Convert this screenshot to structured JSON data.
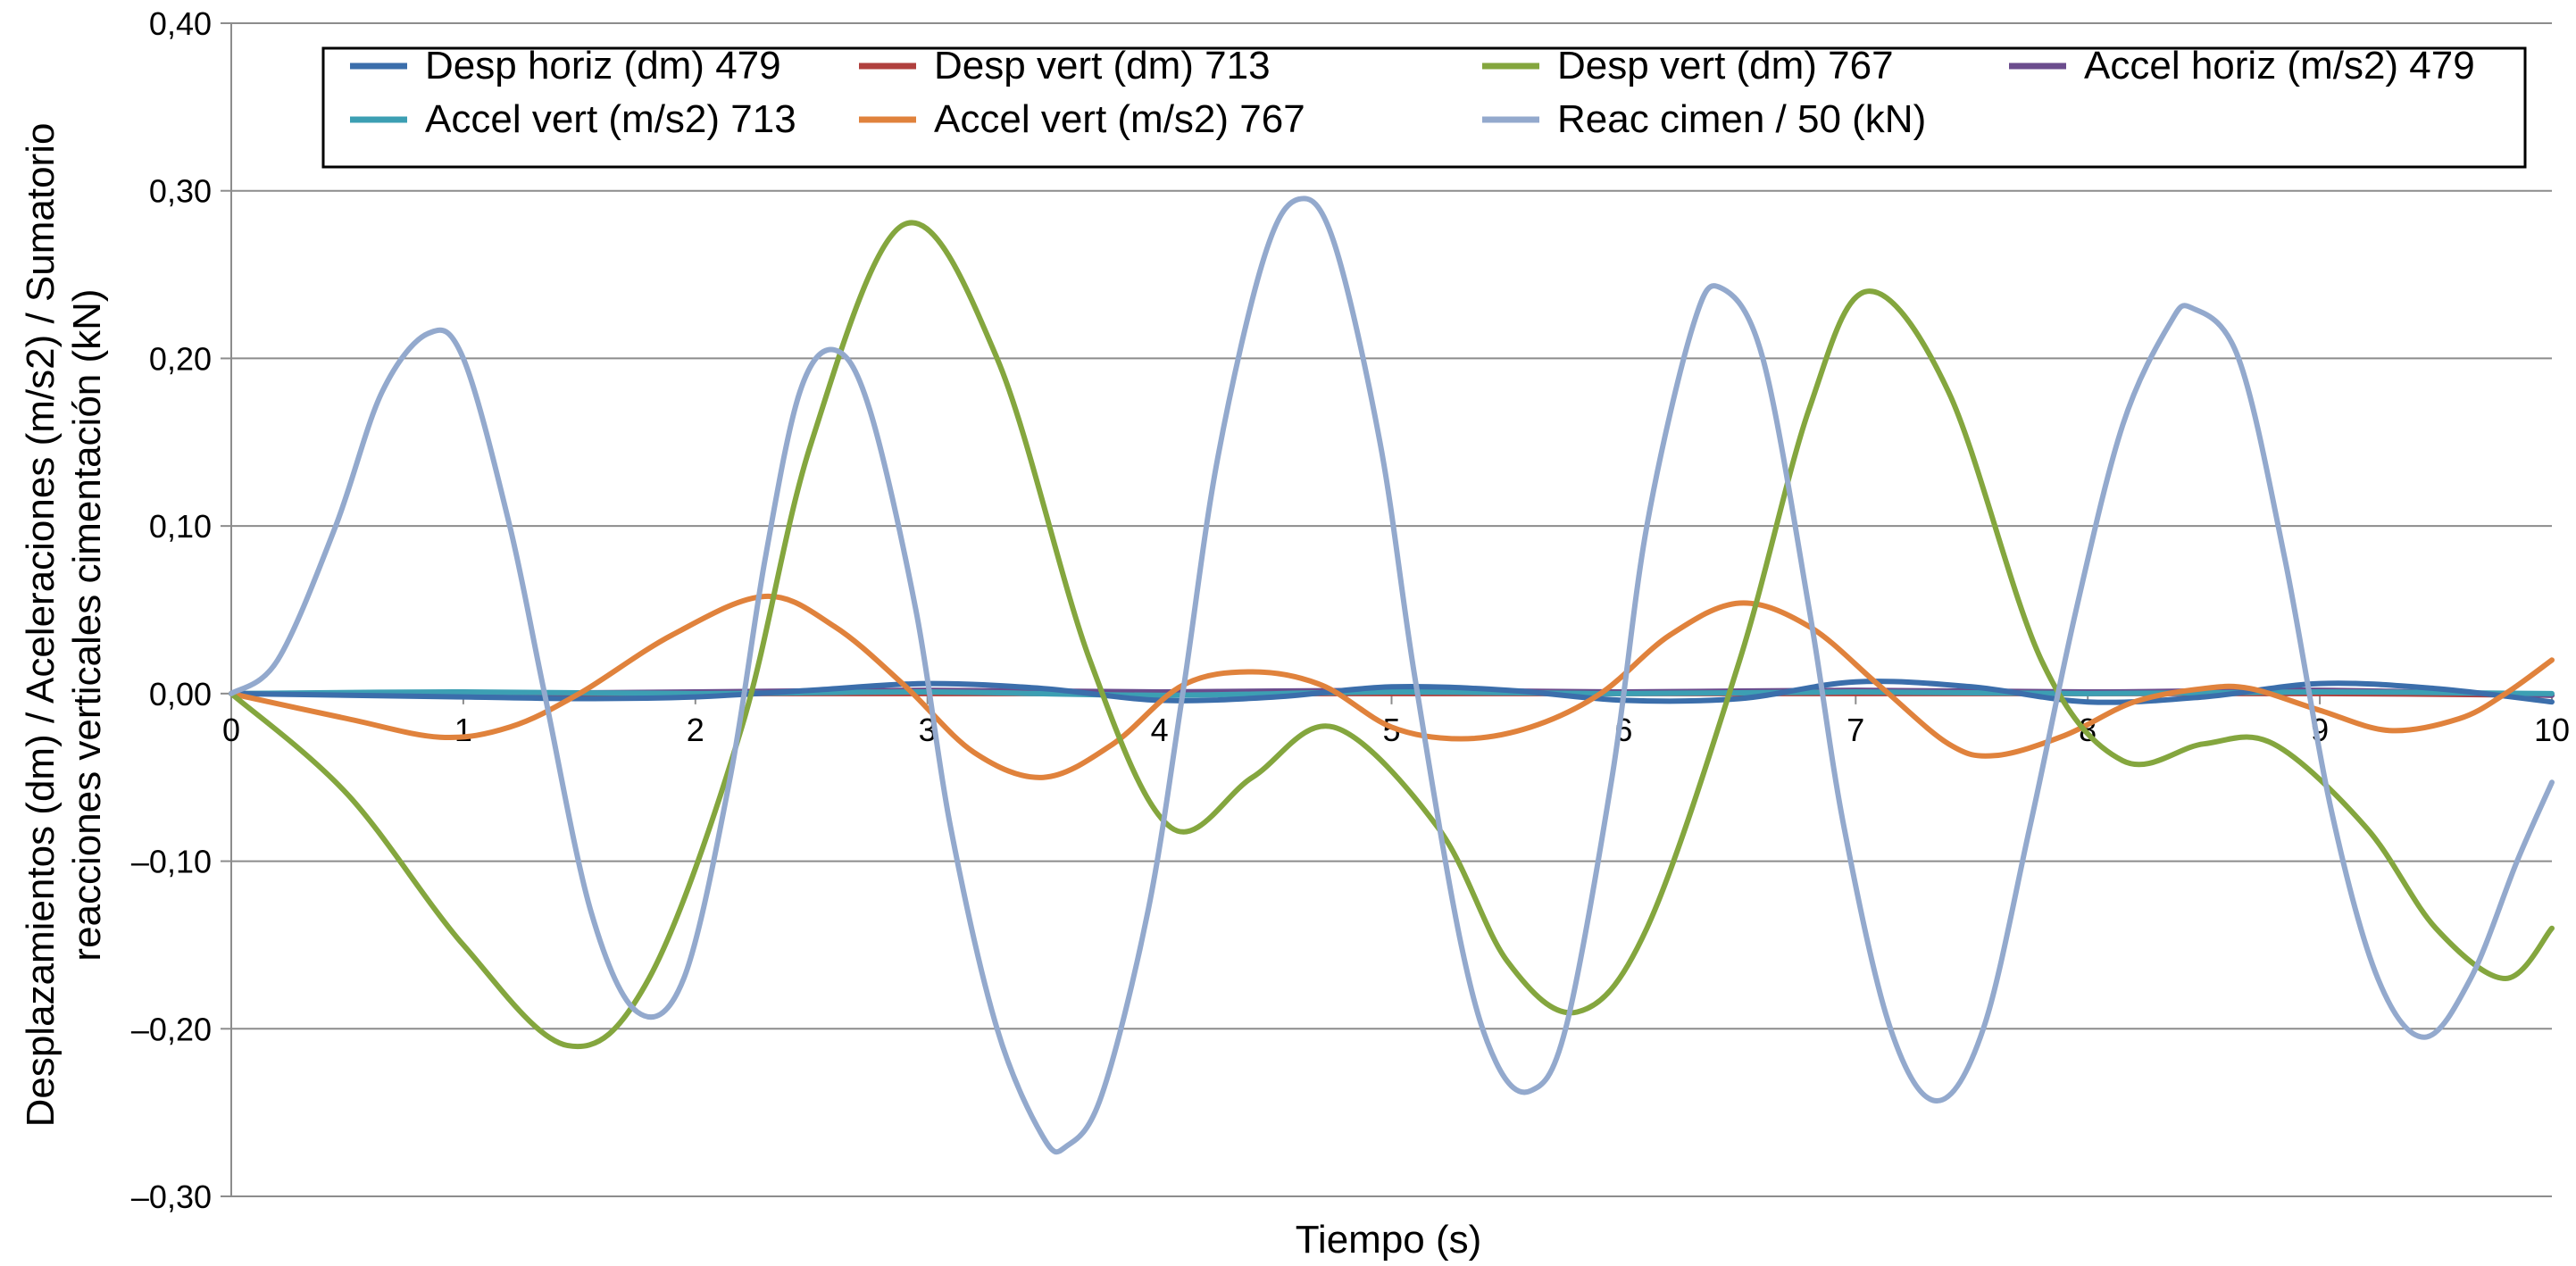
{
  "chart_data": {
    "type": "line",
    "xlabel": "Tiempo (s)",
    "ylabel_lines": [
      "Desplazamientos (dm) / Aceleraciones (m/s2) / Sumatorio",
      "reacciones verticales cimentación (kN)"
    ],
    "xlim": [
      0,
      10
    ],
    "ylim": [
      -0.3,
      0.4
    ],
    "x_ticks": [
      {
        "value": 0,
        "label": "0"
      },
      {
        "value": 1,
        "label": "1"
      },
      {
        "value": 2,
        "label": "2"
      },
      {
        "value": 3,
        "label": "3"
      },
      {
        "value": 4,
        "label": "4"
      },
      {
        "value": 5,
        "label": "5"
      },
      {
        "value": 6,
        "label": "6"
      },
      {
        "value": 7,
        "label": "7"
      },
      {
        "value": 8,
        "label": "8"
      },
      {
        "value": 9,
        "label": "9"
      },
      {
        "value": 10,
        "label": "10"
      }
    ],
    "y_ticks": [
      {
        "value": 0.4,
        "label": "0,40"
      },
      {
        "value": 0.3,
        "label": "0,30"
      },
      {
        "value": 0.2,
        "label": "0,20"
      },
      {
        "value": 0.1,
        "label": "0,10"
      },
      {
        "value": 0.0,
        "label": "0,00"
      },
      {
        "value": -0.1,
        "label": "–0,10"
      },
      {
        "value": -0.2,
        "label": "–0,20"
      },
      {
        "value": -0.3,
        "label": "–0,30"
      }
    ],
    "grid": "horizontal",
    "legend_position": "top",
    "series": [
      {
        "name": "Desp horiz (dm) 479",
        "color": "#3b6eab",
        "points": [
          [
            0,
            0
          ],
          [
            0.5,
            -0.001
          ],
          [
            1,
            -0.002
          ],
          [
            1.5,
            -0.003
          ],
          [
            2,
            -0.002
          ],
          [
            2.5,
            0.002
          ],
          [
            3,
            0.006
          ],
          [
            3.5,
            0.003
          ],
          [
            4,
            -0.004
          ],
          [
            4.5,
            -0.002
          ],
          [
            5,
            0.004
          ],
          [
            5.5,
            0.002
          ],
          [
            6,
            -0.004
          ],
          [
            6.5,
            -0.003
          ],
          [
            7,
            0.007
          ],
          [
            7.5,
            0.004
          ],
          [
            8,
            -0.005
          ],
          [
            8.5,
            -0.002
          ],
          [
            9,
            0.006
          ],
          [
            9.5,
            0.003
          ],
          [
            10,
            -0.005
          ]
        ]
      },
      {
        "name": "Desp vert (dm) 713",
        "color": "#b0403e",
        "points": [
          [
            0,
            0
          ],
          [
            1,
            0
          ],
          [
            2,
            0
          ],
          [
            3,
            0
          ],
          [
            4,
            0
          ],
          [
            5,
            0
          ],
          [
            6,
            0
          ],
          [
            7,
            0
          ],
          [
            8,
            0
          ],
          [
            9,
            0
          ],
          [
            10,
            -0.001
          ]
        ]
      },
      {
        "name": "Desp vert (dm) 767",
        "color": "#84a63e",
        "points": [
          [
            0,
            0
          ],
          [
            0.5,
            -0.06
          ],
          [
            1,
            -0.15
          ],
          [
            1.45,
            -0.21
          ],
          [
            1.8,
            -0.17
          ],
          [
            2.2,
            -0.02
          ],
          [
            2.5,
            0.15
          ],
          [
            2.9,
            0.28
          ],
          [
            3.3,
            0.2
          ],
          [
            3.7,
            0.02
          ],
          [
            4.05,
            -0.08
          ],
          [
            4.4,
            -0.05
          ],
          [
            4.75,
            -0.02
          ],
          [
            5.2,
            -0.08
          ],
          [
            5.5,
            -0.16
          ],
          [
            5.8,
            -0.19
          ],
          [
            6.1,
            -0.14
          ],
          [
            6.5,
            0.02
          ],
          [
            6.8,
            0.17
          ],
          [
            7.05,
            0.24
          ],
          [
            7.4,
            0.18
          ],
          [
            7.8,
            0.02
          ],
          [
            8.15,
            -0.04
          ],
          [
            8.5,
            -0.03
          ],
          [
            8.8,
            -0.03
          ],
          [
            9.2,
            -0.08
          ],
          [
            9.5,
            -0.14
          ],
          [
            9.8,
            -0.17
          ],
          [
            10,
            -0.14
          ]
        ]
      },
      {
        "name": "Accel horiz (m/s2) 479",
        "color": "#6b4c8d",
        "points": [
          [
            0,
            0
          ],
          [
            1,
            0
          ],
          [
            2,
            0.001
          ],
          [
            3,
            0.002
          ],
          [
            4,
            0.001
          ],
          [
            5,
            0.002
          ],
          [
            6,
            0.001
          ],
          [
            7,
            0.002
          ],
          [
            8,
            0.001
          ],
          [
            9,
            0.002
          ],
          [
            10,
            -0.001
          ]
        ]
      },
      {
        "name": "Accel vert (m/s2) 713",
        "color": "#3c9fb3",
        "points": [
          [
            0,
            0
          ],
          [
            1,
            0.001
          ],
          [
            2,
            0
          ],
          [
            3,
            0.001
          ],
          [
            4,
            -0.001
          ],
          [
            5,
            0.001
          ],
          [
            6,
            0
          ],
          [
            7,
            0.001
          ],
          [
            8,
            0
          ],
          [
            9,
            0.001
          ],
          [
            10,
            0
          ]
        ]
      },
      {
        "name": "Accel vert  (m/s2) 767",
        "color": "#e0823c",
        "points": [
          [
            0,
            0
          ],
          [
            0.5,
            -0.015
          ],
          [
            0.9,
            -0.026
          ],
          [
            1.2,
            -0.02
          ],
          [
            1.5,
            0
          ],
          [
            1.9,
            0.035
          ],
          [
            2.3,
            0.058
          ],
          [
            2.6,
            0.04
          ],
          [
            2.9,
            0.005
          ],
          [
            3.2,
            -0.035
          ],
          [
            3.5,
            -0.05
          ],
          [
            3.8,
            -0.03
          ],
          [
            4.1,
            0.005
          ],
          [
            4.4,
            0.013
          ],
          [
            4.7,
            0.005
          ],
          [
            5.0,
            -0.02
          ],
          [
            5.3,
            -0.027
          ],
          [
            5.6,
            -0.02
          ],
          [
            5.9,
            0
          ],
          [
            6.2,
            0.035
          ],
          [
            6.5,
            0.054
          ],
          [
            6.8,
            0.04
          ],
          [
            7.1,
            0.005
          ],
          [
            7.4,
            -0.03
          ],
          [
            7.6,
            -0.037
          ],
          [
            7.9,
            -0.025
          ],
          [
            8.2,
            -0.005
          ],
          [
            8.5,
            0.003
          ],
          [
            8.7,
            0.003
          ],
          [
            9.0,
            -0.01
          ],
          [
            9.3,
            -0.022
          ],
          [
            9.6,
            -0.015
          ],
          [
            9.8,
            0
          ],
          [
            10,
            0.02
          ]
        ]
      },
      {
        "name": "Reac cimen / 50 (kN)",
        "color": "#93a9cd",
        "points": [
          [
            0,
            0
          ],
          [
            0.2,
            0.02
          ],
          [
            0.45,
            0.1
          ],
          [
            0.65,
            0.18
          ],
          [
            0.85,
            0.215
          ],
          [
            1.0,
            0.2
          ],
          [
            1.2,
            0.1
          ],
          [
            1.35,
            0
          ],
          [
            1.55,
            -0.13
          ],
          [
            1.75,
            -0.19
          ],
          [
            1.95,
            -0.17
          ],
          [
            2.15,
            -0.05
          ],
          [
            2.3,
            0.08
          ],
          [
            2.45,
            0.18
          ],
          [
            2.6,
            0.205
          ],
          [
            2.75,
            0.17
          ],
          [
            2.95,
            0.05
          ],
          [
            3.1,
            -0.08
          ],
          [
            3.3,
            -0.2
          ],
          [
            3.5,
            -0.265
          ],
          [
            3.6,
            -0.27
          ],
          [
            3.75,
            -0.24
          ],
          [
            3.95,
            -0.13
          ],
          [
            4.1,
            0
          ],
          [
            4.25,
            0.14
          ],
          [
            4.45,
            0.26
          ],
          [
            4.6,
            0.295
          ],
          [
            4.75,
            0.27
          ],
          [
            4.95,
            0.15
          ],
          [
            5.1,
            0.01
          ],
          [
            5.3,
            -0.15
          ],
          [
            5.45,
            -0.22
          ],
          [
            5.6,
            -0.237
          ],
          [
            5.75,
            -0.2
          ],
          [
            5.95,
            -0.05
          ],
          [
            6.1,
            0.1
          ],
          [
            6.3,
            0.22
          ],
          [
            6.42,
            0.242
          ],
          [
            6.6,
            0.2
          ],
          [
            6.8,
            0.05
          ],
          [
            6.95,
            -0.08
          ],
          [
            7.15,
            -0.2
          ],
          [
            7.35,
            -0.243
          ],
          [
            7.55,
            -0.2
          ],
          [
            7.75,
            -0.08
          ],
          [
            7.95,
            0.05
          ],
          [
            8.15,
            0.16
          ],
          [
            8.35,
            0.22
          ],
          [
            8.45,
            0.23
          ],
          [
            8.65,
            0.2
          ],
          [
            8.85,
            0.08
          ],
          [
            9.05,
            -0.07
          ],
          [
            9.25,
            -0.17
          ],
          [
            9.45,
            -0.205
          ],
          [
            9.65,
            -0.17
          ],
          [
            9.85,
            -0.1
          ],
          [
            10,
            -0.053
          ]
        ]
      }
    ]
  }
}
